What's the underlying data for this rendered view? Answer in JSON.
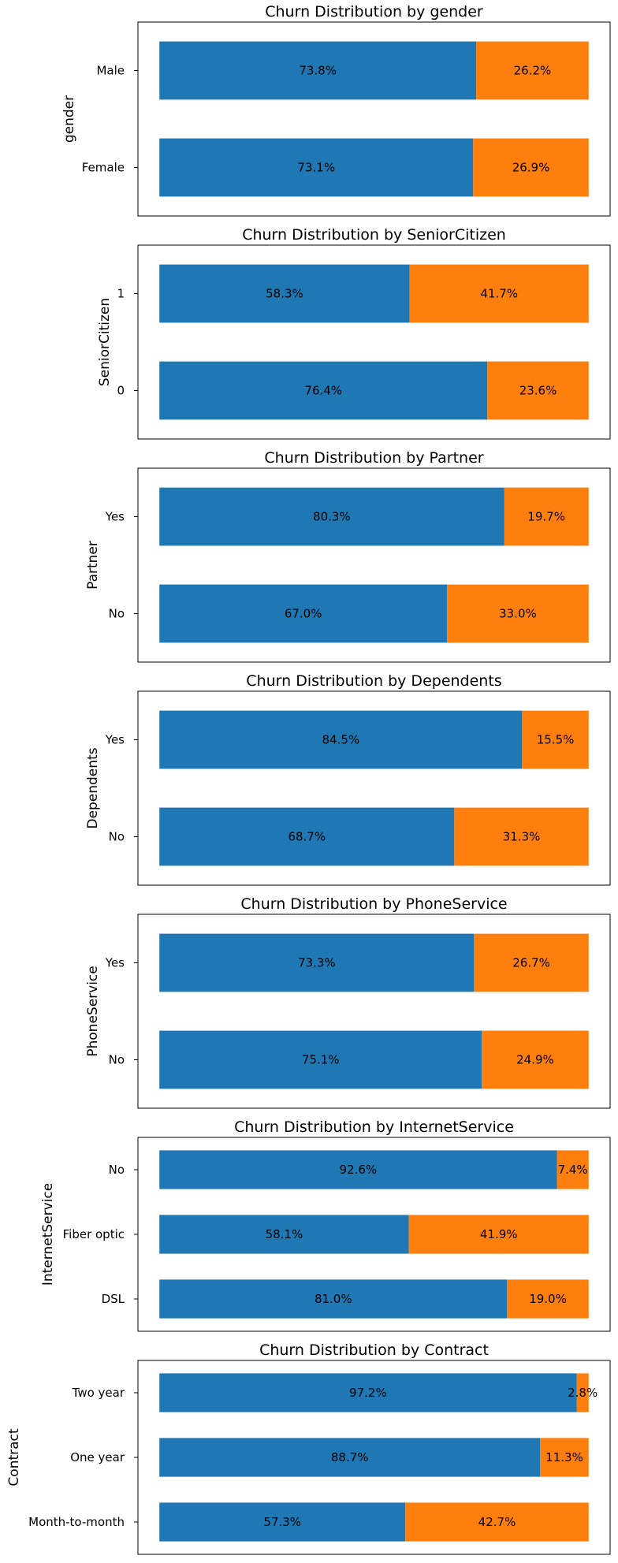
{
  "colors": {
    "retained": "#1f77b4",
    "churned": "#ff7f0e",
    "frame": "#000000"
  },
  "chart_data": [
    {
      "type": "bar",
      "orientation": "horizontal",
      "stacked": true,
      "title": "Churn Distribution by gender",
      "ylabel": "gender",
      "xlabel": "",
      "categories": [
        "Female",
        "Male"
      ],
      "series": [
        {
          "values": [
            73.1,
            73.8
          ],
          "labels": [
            "73.1%",
            "73.8%"
          ]
        },
        {
          "values": [
            26.9,
            26.2
          ],
          "labels": [
            "26.9%",
            "26.2%"
          ]
        }
      ],
      "xlim": [
        -5,
        105
      ],
      "grid": false
    },
    {
      "type": "bar",
      "orientation": "horizontal",
      "stacked": true,
      "title": "Churn Distribution by SeniorCitizen",
      "ylabel": "SeniorCitizen",
      "xlabel": "",
      "categories": [
        "0",
        "1"
      ],
      "series": [
        {
          "values": [
            76.4,
            58.3
          ],
          "labels": [
            "76.4%",
            "58.3%"
          ]
        },
        {
          "values": [
            23.6,
            41.7
          ],
          "labels": [
            "23.6%",
            "41.7%"
          ]
        }
      ],
      "xlim": [
        -5,
        105
      ],
      "grid": false
    },
    {
      "type": "bar",
      "orientation": "horizontal",
      "stacked": true,
      "title": "Churn Distribution by Partner",
      "ylabel": "Partner",
      "xlabel": "",
      "categories": [
        "No",
        "Yes"
      ],
      "series": [
        {
          "values": [
            67.0,
            80.3
          ],
          "labels": [
            "67.0%",
            "80.3%"
          ]
        },
        {
          "values": [
            33.0,
            19.7
          ],
          "labels": [
            "33.0%",
            "19.7%"
          ]
        }
      ],
      "xlim": [
        -5,
        105
      ],
      "grid": false
    },
    {
      "type": "bar",
      "orientation": "horizontal",
      "stacked": true,
      "title": "Churn Distribution by Dependents",
      "ylabel": "Dependents",
      "xlabel": "",
      "categories": [
        "No",
        "Yes"
      ],
      "series": [
        {
          "values": [
            68.7,
            84.5
          ],
          "labels": [
            "68.7%",
            "84.5%"
          ]
        },
        {
          "values": [
            31.3,
            15.5
          ],
          "labels": [
            "31.3%",
            "15.5%"
          ]
        }
      ],
      "xlim": [
        -5,
        105
      ],
      "grid": false
    },
    {
      "type": "bar",
      "orientation": "horizontal",
      "stacked": true,
      "title": "Churn Distribution by PhoneService",
      "ylabel": "PhoneService",
      "xlabel": "",
      "categories": [
        "No",
        "Yes"
      ],
      "series": [
        {
          "values": [
            75.1,
            73.3
          ],
          "labels": [
            "75.1%",
            "73.3%"
          ]
        },
        {
          "values": [
            24.9,
            26.7
          ],
          "labels": [
            "24.9%",
            "26.7%"
          ]
        }
      ],
      "xlim": [
        -5,
        105
      ],
      "grid": false
    },
    {
      "type": "bar",
      "orientation": "horizontal",
      "stacked": true,
      "title": "Churn Distribution by InternetService",
      "ylabel": "InternetService",
      "xlabel": "",
      "categories": [
        "DSL",
        "Fiber optic",
        "No"
      ],
      "series": [
        {
          "values": [
            81.0,
            58.1,
            92.6
          ],
          "labels": [
            "81.0%",
            "58.1%",
            "92.6%"
          ]
        },
        {
          "values": [
            19.0,
            41.9,
            7.4
          ],
          "labels": [
            "19.0%",
            "41.9%",
            "7.4%"
          ]
        }
      ],
      "xlim": [
        -5,
        105
      ],
      "grid": false
    },
    {
      "type": "bar",
      "orientation": "horizontal",
      "stacked": true,
      "title": "Churn Distribution by Contract",
      "ylabel": "Contract",
      "xlabel": "",
      "categories": [
        "Month-to-month",
        "One year",
        "Two year"
      ],
      "series": [
        {
          "values": [
            57.3,
            88.7,
            97.2
          ],
          "labels": [
            "57.3%",
            "88.7%",
            "97.2%"
          ]
        },
        {
          "values": [
            42.7,
            11.3,
            2.8
          ],
          "labels": [
            "42.7%",
            "11.3%",
            "2.8%"
          ]
        }
      ],
      "xlim": [
        -5,
        105
      ],
      "grid": false
    }
  ]
}
